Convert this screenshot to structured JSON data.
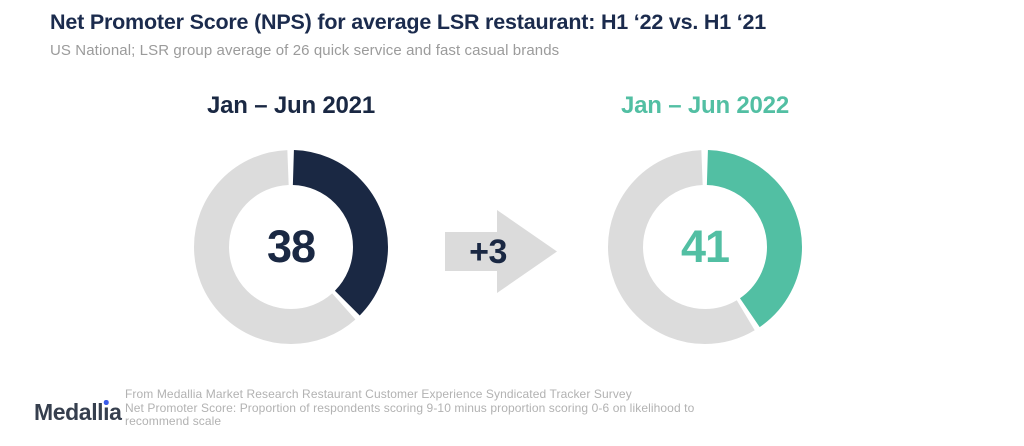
{
  "header": {
    "title": "Net Promoter Score (NPS) for average LSR restaurant: H1 ‘22 vs. H1 ‘21",
    "subtitle": "US National; LSR group average of 26 quick service and fast casual brands"
  },
  "chart_data": {
    "type": "pie",
    "variant": "donut-comparison",
    "metric": "Net Promoter Score",
    "series": [
      {
        "label": "Jan – Jun 2021",
        "value": 38,
        "scale_max": 100,
        "color": "#1A2843"
      },
      {
        "label": "Jan – Jun 2022",
        "value": 41,
        "scale_max": 100,
        "color": "#52BFA3"
      }
    ],
    "delta_label": "+3",
    "track_color": "#DCDCDC",
    "gap_degrees": 3.5
  },
  "footer": {
    "logo_text": "Medallia",
    "note_lines": [
      "From Medallia Market Research Restaurant Customer Experience Syndicated Tracker Survey",
      "Net Promoter Score: Proportion of respondents scoring 9-10 minus proportion scoring 0-6 on likelihood to",
      "recommend scale"
    ]
  },
  "colors": {
    "title_navy": "#1B2B4D",
    "subtitle_gray": "#9B9B9B",
    "arrow_gray": "#DBDBDB",
    "footnote_gray": "#B2B2B2",
    "logo_dark": "#363F4E",
    "logo_dot_blue": "#3A5BE9"
  }
}
